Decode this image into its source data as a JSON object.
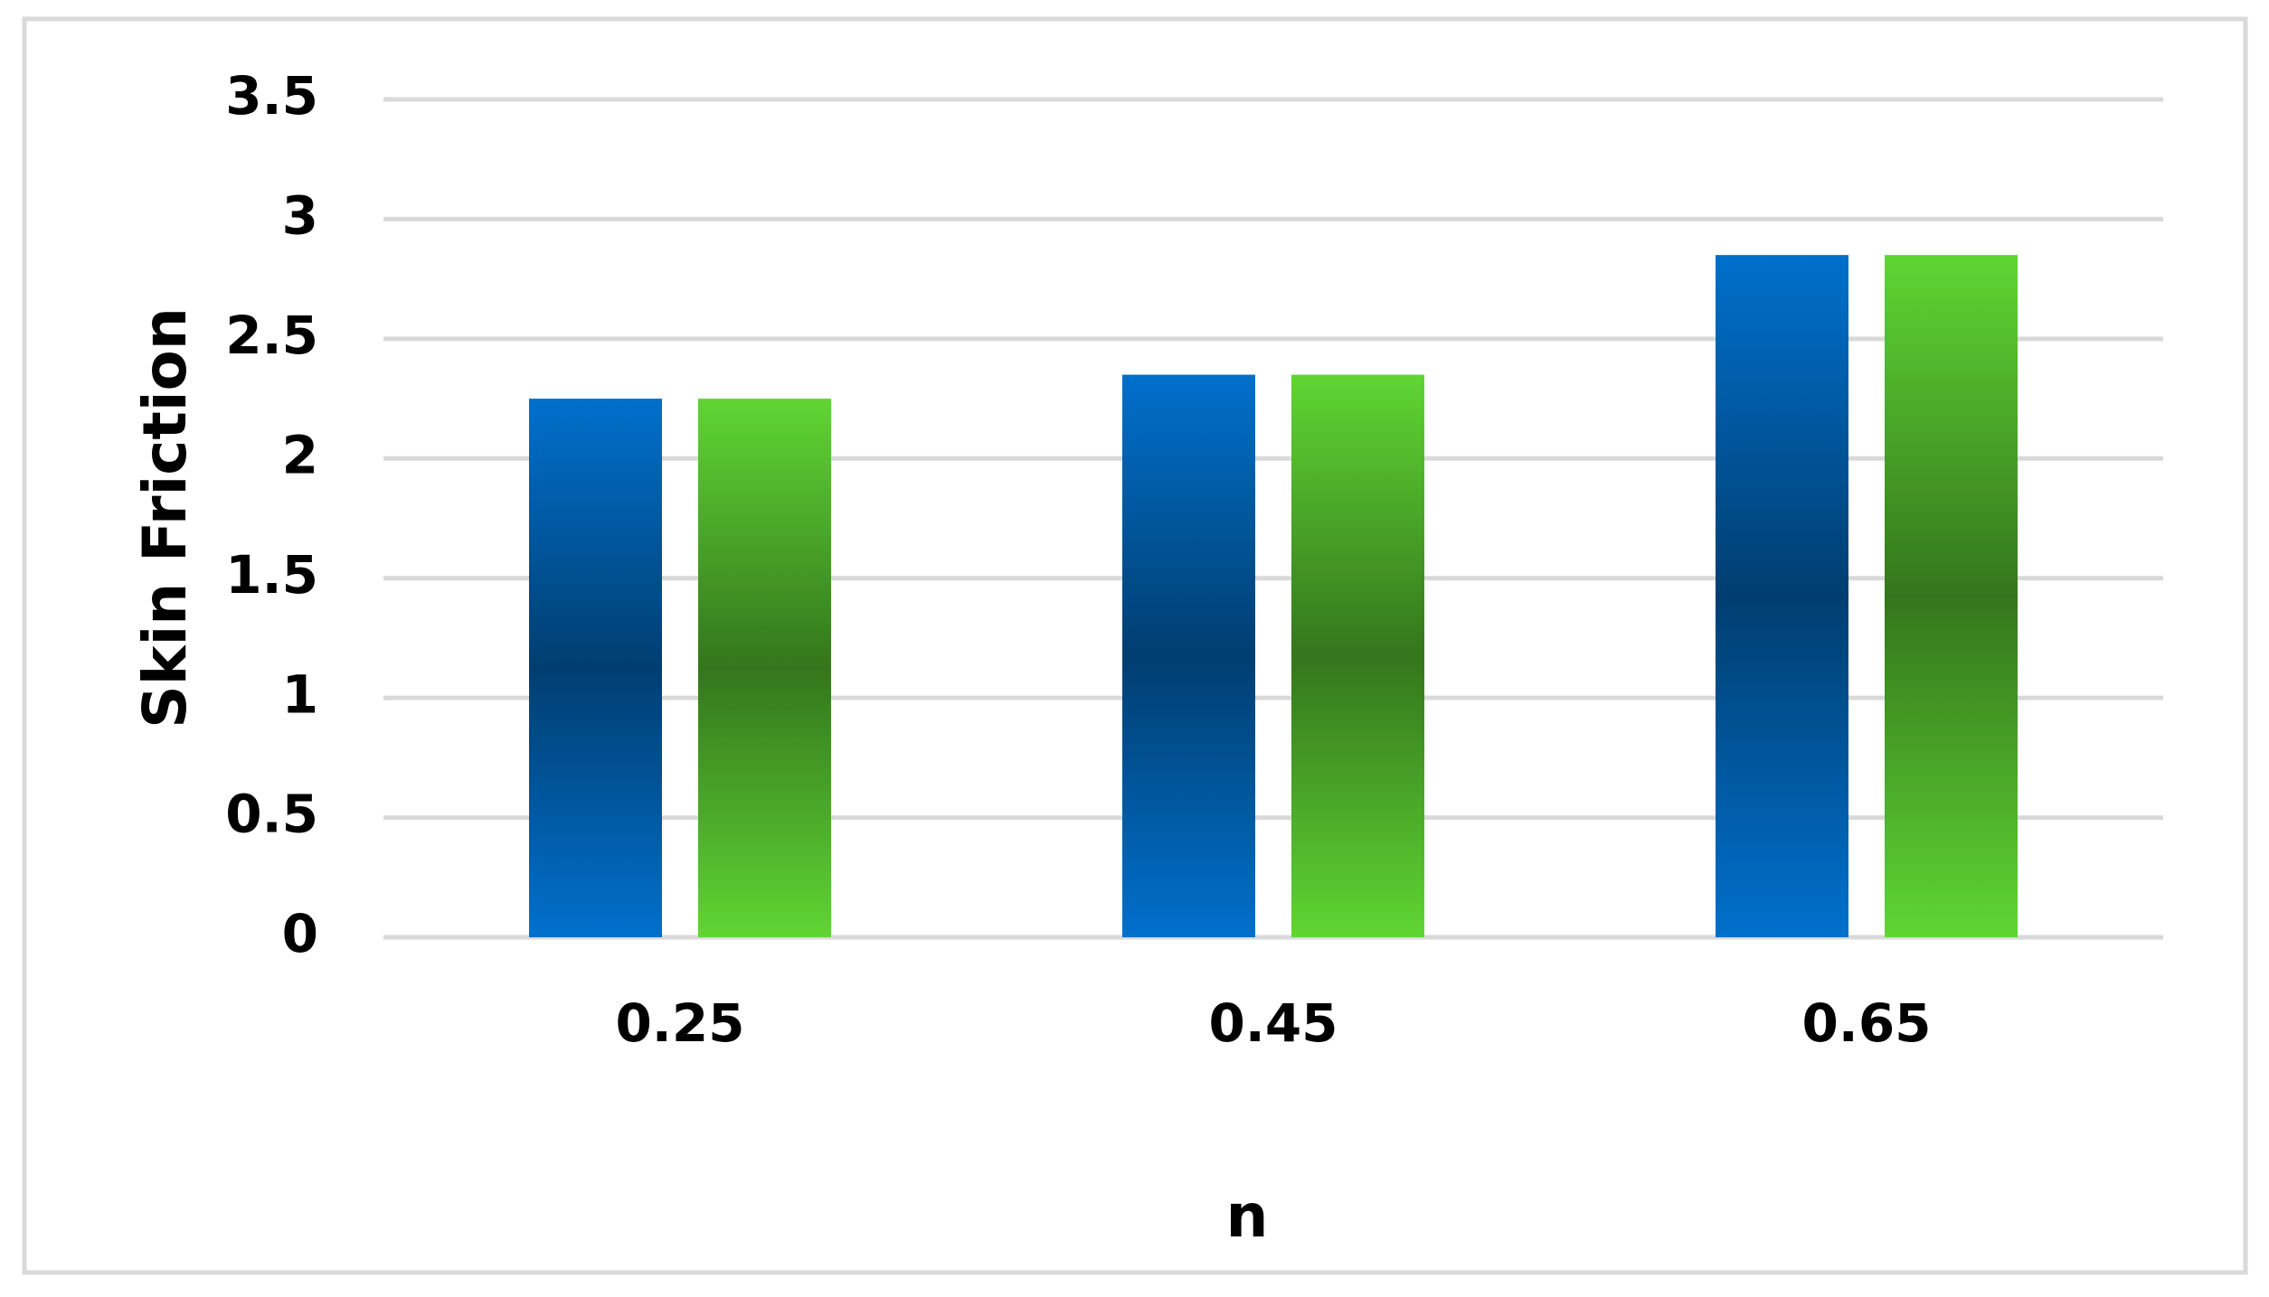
{
  "chart_data": {
    "type": "bar",
    "x_label": "n",
    "y_label": "Skin Friction",
    "categories": [
      "0.25",
      "0.45",
      "0.65"
    ],
    "series": [
      {
        "color": "#0070cc",
        "values": [
          2.25,
          2.35,
          2.85
        ]
      },
      {
        "color": "#5fd633",
        "values": [
          2.25,
          2.35,
          2.85
        ]
      }
    ],
    "ylim": [
      0,
      3.5
    ],
    "yticks": [
      0,
      0.5,
      1,
      1.5,
      2,
      2.5,
      3,
      3.5
    ],
    "grid": true
  }
}
